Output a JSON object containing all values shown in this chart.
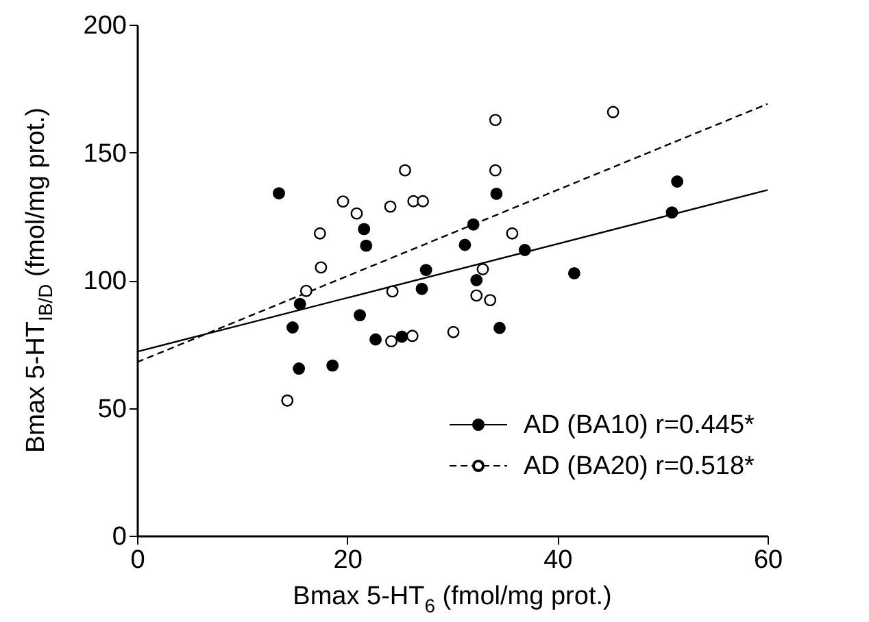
{
  "chart_data": {
    "type": "scatter",
    "xlabel": "Bmax 5-HT$_{6}$ (fmol/mg prot.)",
    "ylabel": "Bmax 5-HT$_{IB/D}$ (fmol/mg prot.)",
    "xlim": [
      0,
      60
    ],
    "xticks": [
      0,
      20,
      40,
      60
    ],
    "ylim": [
      0,
      200
    ],
    "yticks": [
      0,
      50,
      100,
      150,
      200
    ],
    "grid": false,
    "legend": "bottom right",
    "series": [
      {
        "name": "AD (BA10) r=0.445*",
        "color": "#000000",
        "marker": "circle",
        "x": [
          13.5,
          21.6,
          21.8,
          27.5,
          27.1,
          32.0,
          31.2,
          32.3,
          15.5,
          21.2,
          14.8,
          34.2,
          51.4,
          50.9,
          36.9,
          41.6,
          34.5,
          15.4,
          18.6,
          22.7,
          25.2
        ],
        "values": [
          134,
          120,
          113.5,
          104,
          96.6,
          121.8,
          113.8,
          100,
          90.7,
          86.3,
          81.5,
          133.8,
          138.6,
          126.5,
          111.8,
          102.7,
          81.3,
          65.4,
          66.6,
          76.8,
          77.9
        ]
      },
      {
        "name": "AD (BA20) r=0.518*",
        "color": "#ffffff",
        "marker": "circle",
        "x": [
          25.5,
          19.6,
          20.9,
          24.1,
          26.3,
          27.2,
          17.4,
          17.5,
          16.1,
          24.3,
          32.9,
          32.3,
          33.6,
          34.1,
          34.1,
          45.3,
          35.7,
          14.3,
          24.2,
          26.2,
          30.1
        ],
        "values": [
          143,
          130.8,
          126.1,
          128.8,
          130.9,
          130.9,
          118.3,
          105,
          95.8,
          95.6,
          104.3,
          94,
          92.2,
          162.7,
          143,
          165.8,
          118.3,
          52.9,
          76.1,
          78.2,
          79.7
        ]
      },
      {
        "type": "line",
        "color": "#000000",
        "line_style": "solid",
        "marker": "none",
        "x": [
          0,
          60
        ],
        "values": [
          72,
          135.3
        ]
      },
      {
        "type": "line",
        "color": "#000000",
        "line_style": "dashed",
        "marker": "none",
        "x": [
          0,
          60
        ],
        "values": [
          67.9,
          169
        ]
      }
    ]
  }
}
